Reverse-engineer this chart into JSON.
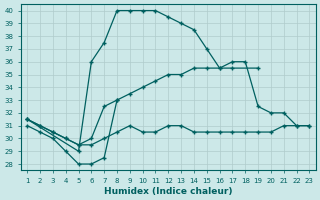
{
  "xlabel": "Humidex (Indice chaleur)",
  "bg_color": "#cce8e8",
  "line_color": "#006060",
  "grid_color": "#b0cccc",
  "ylim": [
    27.5,
    40.5
  ],
  "xlim": [
    0.5,
    23.5
  ],
  "yticks": [
    28,
    29,
    30,
    31,
    32,
    33,
    34,
    35,
    36,
    37,
    38,
    39,
    40
  ],
  "xticks": [
    1,
    2,
    3,
    4,
    5,
    6,
    7,
    8,
    9,
    10,
    11,
    12,
    13,
    14,
    15,
    16,
    17,
    18,
    19,
    20,
    21,
    22,
    23
  ],
  "line1_x": [
    1,
    5,
    6,
    7,
    8,
    9,
    10,
    11,
    12,
    13,
    14,
    15,
    16,
    17,
    19
  ],
  "line1_y": [
    31.5,
    29.0,
    36.0,
    37.5,
    40.0,
    40.0,
    40.0,
    40.0,
    39.5,
    39.0,
    38.5,
    37.0,
    35.5,
    35.5,
    35.5
  ],
  "line2_x": [
    1,
    2,
    3,
    4,
    5,
    6,
    7,
    8,
    9,
    10,
    11,
    12,
    13,
    14,
    15,
    16,
    17,
    18,
    19,
    20,
    21,
    22,
    23
  ],
  "line2_y": [
    31.5,
    31.0,
    30.5,
    30.0,
    29.5,
    30.0,
    32.5,
    33.0,
    33.5,
    34.0,
    34.5,
    35.0,
    35.0,
    35.5,
    35.5,
    35.5,
    36.0,
    36.0,
    32.5,
    32.0,
    32.0,
    31.0,
    31.0
  ],
  "line3_x": [
    1,
    2,
    3,
    4,
    5,
    6,
    7,
    8,
    9,
    10,
    11,
    12,
    13,
    14,
    15,
    16,
    17,
    18,
    19,
    20,
    21,
    22,
    23
  ],
  "line3_y": [
    31.5,
    31.0,
    30.5,
    30.0,
    29.5,
    29.5,
    30.0,
    30.5,
    31.0,
    30.5,
    30.5,
    31.0,
    31.0,
    30.5,
    30.5,
    30.5,
    30.5,
    30.5,
    30.5,
    30.5,
    31.0,
    31.0,
    31.0
  ],
  "line4_x": [
    1,
    2,
    3,
    4,
    5,
    6,
    7,
    8
  ],
  "line4_y": [
    31.0,
    30.5,
    30.0,
    29.0,
    28.0,
    28.0,
    28.5,
    33.0
  ]
}
